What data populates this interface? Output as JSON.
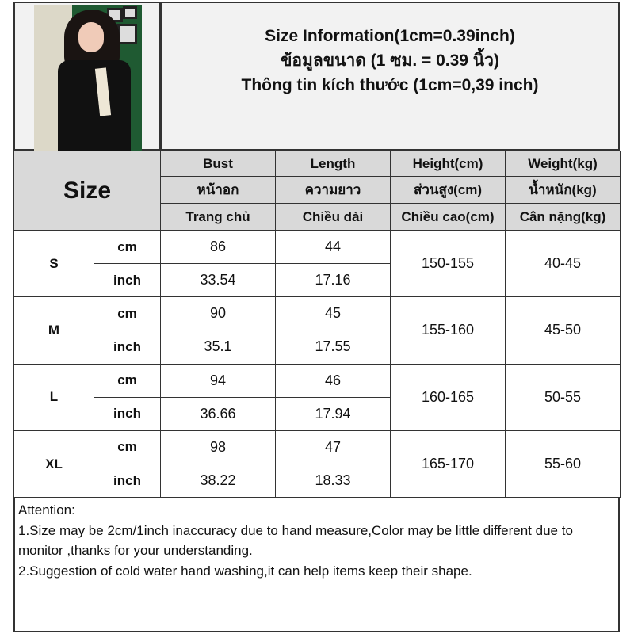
{
  "title_lines": [
    "Size Information(1cm=0.39inch)",
    "ข้อมูลขนาด (1 ซม. = 0.39 นิ้ว)",
    "Thông tin kích thước (1cm=0,39 inch)"
  ],
  "size_header": "Size",
  "columns": [
    {
      "en": "Bust",
      "th": "หน้าอก",
      "vi": "Trang chủ"
    },
    {
      "en": "Length",
      "th": "ความยาว",
      "vi": "Chiều dài"
    },
    {
      "en": "Height(cm)",
      "th": "ส่วนสูง(cm)",
      "vi": "Chiều cao(cm)"
    },
    {
      "en": "Weight(kg)",
      "th": "น้ำหนัก(kg)",
      "vi": "Cân nặng(kg)"
    }
  ],
  "rows": [
    {
      "size": "S",
      "cm_label": "cm",
      "inch_label": "inch",
      "bust_cm": "86",
      "length_cm": "44",
      "bust_inch": "33.54",
      "length_inch": "17.16",
      "height": "150-155",
      "weight": "40-45"
    },
    {
      "size": "M",
      "cm_label": "cm",
      "inch_label": "inch",
      "bust_cm": "90",
      "length_cm": "45",
      "bust_inch": "35.1",
      "length_inch": "17.55",
      "height": "155-160",
      "weight": "45-50"
    },
    {
      "size": "L",
      "cm_label": "cm",
      "inch_label": "inch",
      "bust_cm": "94",
      "length_cm": "46",
      "bust_inch": "36.66",
      "length_inch": "17.94",
      "height": "160-165",
      "weight": "50-55"
    },
    {
      "size": "XL",
      "cm_label": "cm",
      "inch_label": "inch",
      "bust_cm": "98",
      "length_cm": "47",
      "bust_inch": "38.22",
      "length_inch": "18.33",
      "height": "165-170",
      "weight": "55-60"
    }
  ],
  "attention": {
    "heading": "Attention:",
    "notes": [
      "1.Size may be 2cm/1inch inaccuracy due to hand measure,Color may be little different due to monitor ,thanks for your understanding.",
      "2.Suggestion of cold water hand washing,it can help items keep their shape."
    ]
  }
}
